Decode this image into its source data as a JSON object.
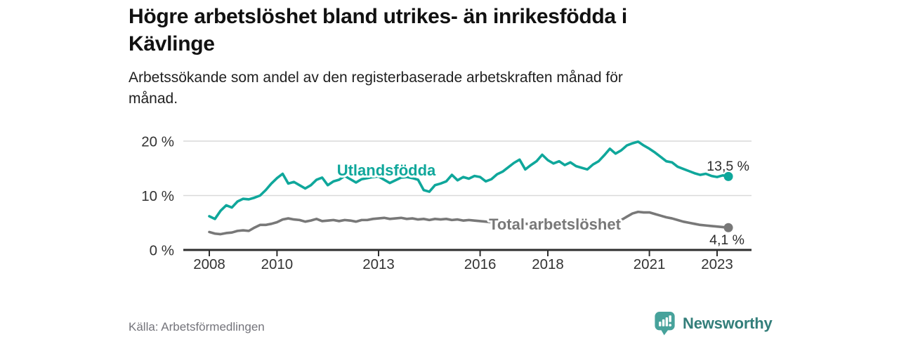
{
  "header": {
    "title_lines": [
      "Högre arbetslöshet bland utrikes- än inrikesfödda i",
      "Kävlinge"
    ],
    "subtitle_lines": [
      "Arbetssökande som andel av den registerbaserade arbetskraften månad för",
      "månad."
    ]
  },
  "footer": {
    "source": "Källa: Arbetsförmedlingen",
    "brand": "Newsworthy"
  },
  "colors": {
    "accent_teal": "#0fa79b",
    "series_gray": "#787878",
    "axis": "#2e2e2e",
    "grid": "#d9d9d9",
    "tick_text": "#333333",
    "value_text": "#2b2b2b",
    "logo_icon": "#47a29b",
    "logo_text": "#337e7a"
  },
  "chart_data": {
    "type": "line",
    "unit": "%",
    "grid": "horizontal",
    "legend": "inline-labels",
    "x_axis": {
      "ticks": [
        2008,
        2010,
        2013,
        2016,
        2018,
        2021,
        2023
      ],
      "tick_labels": [
        "2008",
        "2010",
        "2013",
        "2016",
        "2018",
        "2021",
        "2023"
      ],
      "range": [
        2007.2,
        2024.0
      ]
    },
    "y_axis": {
      "ticks": [
        0,
        10,
        20
      ],
      "tick_labels": [
        "0 %",
        "10 %",
        "20 %"
      ],
      "range": [
        0,
        21.5
      ]
    },
    "series": [
      {
        "name": "Utlandsfödda",
        "color": "#0fa79b",
        "end_label": "13,5 %",
        "end_value": 13.5,
        "start_year": 2008,
        "step_months": 2,
        "values": [
          6.2,
          5.7,
          7.2,
          8.2,
          7.8,
          8.9,
          9.4,
          9.3,
          9.6,
          10.0,
          11.0,
          12.2,
          13.2,
          14.0,
          12.2,
          12.5,
          11.9,
          11.3,
          11.9,
          12.9,
          13.3,
          11.9,
          12.6,
          12.9,
          13.6,
          13.0,
          12.4,
          13.0,
          13.2,
          13.4,
          13.5,
          12.9,
          12.3,
          12.8,
          13.3,
          13.4,
          13.2,
          12.9,
          11.0,
          10.7,
          11.9,
          12.2,
          12.6,
          13.8,
          12.8,
          13.4,
          13.1,
          13.6,
          13.4,
          12.6,
          13.0,
          13.9,
          14.4,
          15.2,
          16.0,
          16.6,
          14.8,
          15.6,
          16.3,
          17.5,
          16.5,
          15.9,
          16.3,
          15.6,
          16.1,
          15.4,
          15.1,
          14.8,
          15.7,
          16.3,
          17.4,
          18.6,
          17.7,
          18.3,
          19.2,
          19.6,
          19.9,
          19.2,
          18.6,
          17.9,
          17.1,
          16.3,
          16.1,
          15.3,
          14.9,
          14.5,
          14.1,
          13.8,
          14.0,
          13.6,
          13.4,
          13.7,
          13.5
        ]
      },
      {
        "name": "Total arbetslöshet",
        "color": "#787878",
        "end_label": "4,1 %",
        "end_value": 4.1,
        "start_year": 2008,
        "step_months": 2,
        "values": [
          3.3,
          3.0,
          2.9,
          3.1,
          3.2,
          3.5,
          3.6,
          3.5,
          4.1,
          4.6,
          4.6,
          4.8,
          5.1,
          5.6,
          5.8,
          5.6,
          5.5,
          5.2,
          5.4,
          5.7,
          5.3,
          5.4,
          5.5,
          5.3,
          5.5,
          5.4,
          5.2,
          5.5,
          5.5,
          5.7,
          5.8,
          5.9,
          5.7,
          5.8,
          5.9,
          5.7,
          5.8,
          5.6,
          5.7,
          5.5,
          5.7,
          5.6,
          5.7,
          5.5,
          5.6,
          5.4,
          5.5,
          5.4,
          5.3,
          5.2,
          5.1,
          5.1,
          5.0,
          5.0,
          5.0,
          4.9,
          4.8,
          4.8,
          4.7,
          4.7,
          4.7,
          4.6,
          4.6,
          4.6,
          4.6,
          4.6,
          4.6,
          4.6,
          4.7,
          4.8,
          4.9,
          5.1,
          5.0,
          5.5,
          6.1,
          6.7,
          7.0,
          6.9,
          6.9,
          6.6,
          6.3,
          6.0,
          5.8,
          5.5,
          5.2,
          5.0,
          4.8,
          4.6,
          4.5,
          4.4,
          4.3,
          4.2,
          4.1
        ]
      }
    ]
  }
}
